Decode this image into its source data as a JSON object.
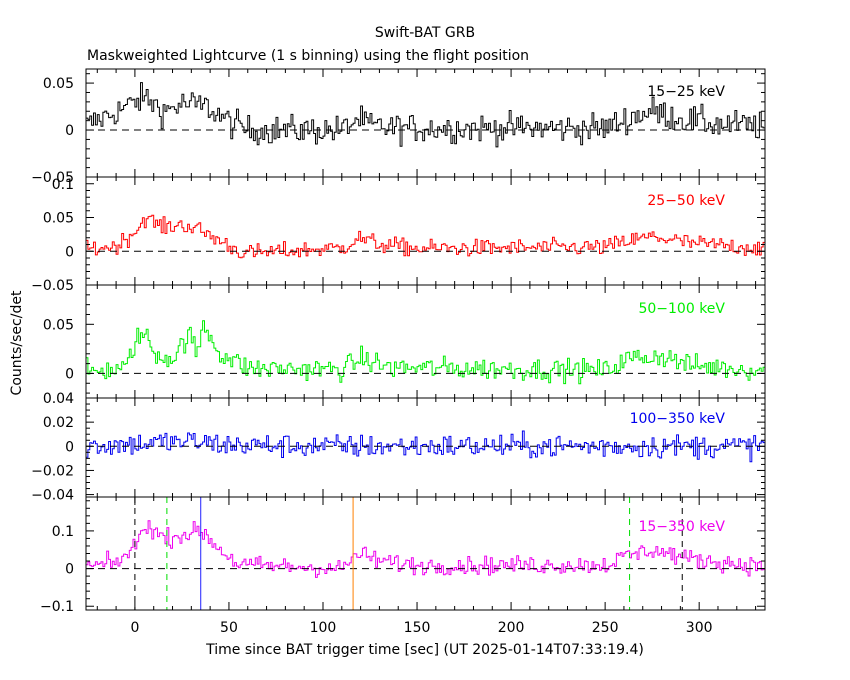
{
  "header": {
    "title": "Swift-BAT GRB",
    "subtitle": "Maskweighted Lightcurve (1 s binning) using the flight position"
  },
  "axes": {
    "xlabel": "Time since BAT trigger time [sec] (UT 2025-01-14T07:33:19.4)",
    "ylabel": "Counts/sec/det"
  },
  "chart_data": {
    "type": "line",
    "x_range": [
      -26,
      335
    ],
    "x_ticks": [
      0,
      50,
      100,
      150,
      200,
      250,
      300
    ],
    "x_tick_labels": [
      "0",
      "50",
      "100",
      "150",
      "200",
      "250",
      "300"
    ],
    "x_minor_step": 10,
    "grid": false,
    "zero_line": true,
    "markers": [
      {
        "x": 0,
        "color": "#000000",
        "style": "dashed"
      },
      {
        "x": 17,
        "color": "#00dd00",
        "style": "dashed"
      },
      {
        "x": 35,
        "color": "#2020ff",
        "style": "solid"
      },
      {
        "x": 116,
        "color": "#ff8000",
        "style": "solid"
      },
      {
        "x": 263,
        "color": "#00dd00",
        "style": "dashed"
      },
      {
        "x": 291,
        "color": "#000000",
        "style": "dashed"
      }
    ],
    "panels": [
      {
        "band": "15-25 keV",
        "label": "15−25 keV",
        "color": "#000000",
        "ylim": [
          -0.05,
          0.065
        ],
        "y_ticks": [
          0.05,
          0,
          -0.05
        ],
        "y_tick_labels": [
          "0.05",
          "0",
          "−0.05"
        ],
        "y_minor_step": 0.01,
        "noise": 0.011,
        "profile": [
          [
            -26,
            0.005
          ],
          [
            -10,
            0.02
          ],
          [
            5,
            0.035
          ],
          [
            15,
            0.02
          ],
          [
            25,
            0.028
          ],
          [
            38,
            0.025
          ],
          [
            50,
            0.008
          ],
          [
            60,
            0.0
          ],
          [
            110,
            0.0
          ],
          [
            118,
            0.012
          ],
          [
            125,
            0.004
          ],
          [
            140,
            0.002
          ],
          [
            250,
            0.002
          ],
          [
            265,
            0.015
          ],
          [
            275,
            0.02
          ],
          [
            290,
            0.012
          ],
          [
            310,
            0.006
          ],
          [
            335,
            0.004
          ]
        ]
      },
      {
        "band": "25-50 keV",
        "label": "25−50 keV",
        "color": "#ff0000",
        "ylim": [
          -0.05,
          0.11
        ],
        "y_ticks": [
          0.1,
          0.05,
          0,
          -0.05
        ],
        "y_tick_labels": [
          "0.1",
          "0.05",
          "0",
          "−0.05"
        ],
        "y_minor_step": 0.01,
        "noise": 0.009,
        "profile": [
          [
            -26,
            0.003
          ],
          [
            -10,
            0.008
          ],
          [
            0,
            0.03
          ],
          [
            5,
            0.05
          ],
          [
            15,
            0.035
          ],
          [
            25,
            0.04
          ],
          [
            35,
            0.03
          ],
          [
            45,
            0.015
          ],
          [
            55,
            0.0
          ],
          [
            60,
            -0.003
          ],
          [
            110,
            0.005
          ],
          [
            118,
            0.02
          ],
          [
            130,
            0.01
          ],
          [
            150,
            0.004
          ],
          [
            250,
            0.006
          ],
          [
            262,
            0.015
          ],
          [
            275,
            0.022
          ],
          [
            295,
            0.012
          ],
          [
            335,
            0.004
          ]
        ]
      },
      {
        "band": "50-100 keV",
        "label": "50−100 keV",
        "color": "#00ee00",
        "ylim": [
          -0.025,
          0.09
        ],
        "y_ticks": [
          0.05,
          0
        ],
        "y_tick_labels": [
          "0.05",
          "0"
        ],
        "y_minor_step": 0.01,
        "noise": 0.008,
        "profile": [
          [
            -26,
            0.002
          ],
          [
            -5,
            0.005
          ],
          [
            0,
            0.035
          ],
          [
            5,
            0.04
          ],
          [
            10,
            0.02
          ],
          [
            20,
            0.015
          ],
          [
            28,
            0.04
          ],
          [
            33,
            0.02
          ],
          [
            36,
            0.05
          ],
          [
            45,
            0.02
          ],
          [
            60,
            0.005
          ],
          [
            110,
            0.004
          ],
          [
            120,
            0.015
          ],
          [
            135,
            0.006
          ],
          [
            250,
            0.003
          ],
          [
            262,
            0.015
          ],
          [
            280,
            0.018
          ],
          [
            295,
            0.008
          ],
          [
            335,
            0.003
          ]
        ]
      },
      {
        "band": "100-350 keV",
        "label": "100−350 keV",
        "color": "#0000ee",
        "ylim": [
          -0.042,
          0.04
        ],
        "y_ticks": [
          0.04,
          0.02,
          0,
          -0.02,
          -0.04
        ],
        "y_tick_labels": [
          "0.04",
          "0.02",
          "0",
          "−0.02",
          "−0.04"
        ],
        "y_minor_step": 0.005,
        "noise": 0.007,
        "profile": [
          [
            -26,
            0.0
          ],
          [
            0,
            0.002
          ],
          [
            10,
            0.003
          ],
          [
            30,
            0.004
          ],
          [
            50,
            0.001
          ],
          [
            100,
            0.0
          ],
          [
            335,
            0.0
          ]
        ]
      },
      {
        "band": "15-350 keV",
        "label": "15−350 keV",
        "color": "#ee00ee",
        "ylim": [
          -0.11,
          0.19
        ],
        "y_ticks": [
          0.1,
          0,
          -0.1
        ],
        "y_tick_labels": [
          "0.1",
          "0",
          "−0.1"
        ],
        "y_minor_step": 0.02,
        "noise": 0.017,
        "profile": [
          [
            -26,
            0.005
          ],
          [
            -10,
            0.015
          ],
          [
            0,
            0.06
          ],
          [
            5,
            0.12
          ],
          [
            15,
            0.08
          ],
          [
            25,
            0.09
          ],
          [
            35,
            0.1
          ],
          [
            45,
            0.05
          ],
          [
            55,
            0.01
          ],
          [
            110,
            0.0
          ],
          [
            118,
            0.04
          ],
          [
            130,
            0.02
          ],
          [
            150,
            0.008
          ],
          [
            250,
            0.01
          ],
          [
            262,
            0.035
          ],
          [
            275,
            0.05
          ],
          [
            295,
            0.025
          ],
          [
            335,
            0.005
          ]
        ]
      }
    ]
  }
}
